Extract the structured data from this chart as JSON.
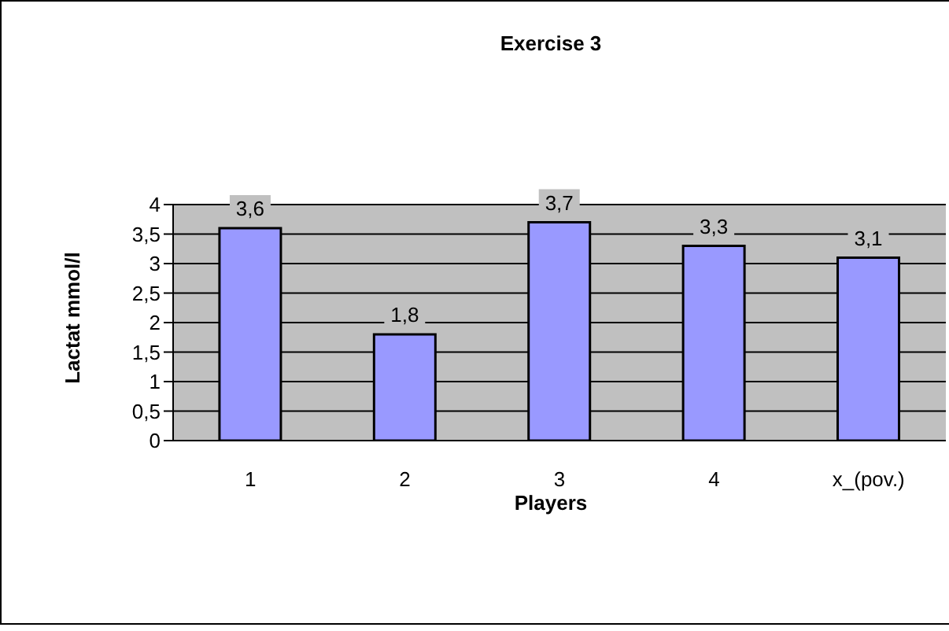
{
  "chart_data": {
    "type": "bar",
    "title": "Exercise 3",
    "xlabel": "Players",
    "ylabel": "Lactat mmol/l",
    "categories": [
      "1",
      "2",
      "3",
      "4",
      "x_(pov.)"
    ],
    "series": [
      {
        "color": "#9999ff",
        "values": [
          3.6,
          1.8,
          3.7,
          3.3,
          3.1
        ],
        "value_labels": [
          "3,6",
          "1,8",
          "3,7",
          "3,3",
          "3,1"
        ]
      }
    ],
    "ylim": [
      0,
      4
    ],
    "yticks": [
      0,
      {
        "value": 0.5,
        "label": "0,5"
      },
      1,
      {
        "value": 1.5,
        "label": "1,5"
      },
      2,
      {
        "value": 2.5,
        "label": "2,5"
      },
      3,
      {
        "value": 3.5,
        "label": "3,5"
      },
      4
    ],
    "grid": "y"
  }
}
